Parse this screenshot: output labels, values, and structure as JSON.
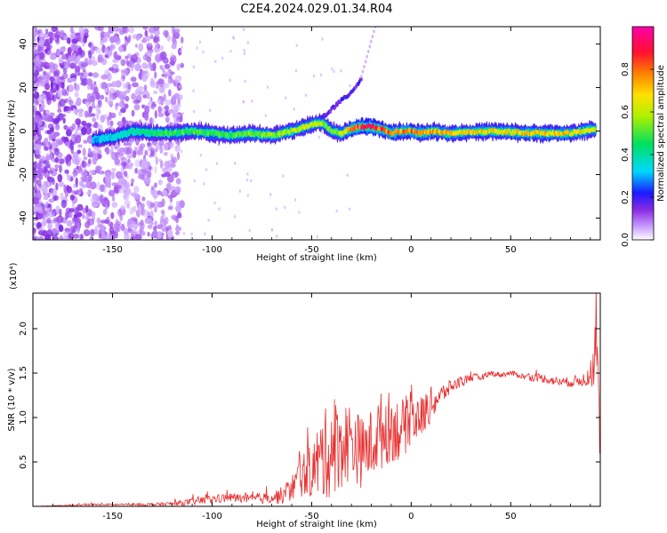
{
  "title": "C2E4.2024.029.01.34.R04",
  "chart_data": [
    {
      "type": "heatmap",
      "xlabel": "Height of straight line (km)",
      "ylabel": "Frequency (Hz)",
      "xlim": [
        -190,
        95
      ],
      "ylim": [
        -50,
        48
      ],
      "xticks": [
        -150,
        -100,
        -50,
        0,
        50
      ],
      "yticks": [
        -40,
        -20,
        0,
        20,
        40
      ],
      "colorbar": {
        "label": "Normalized spectral amplitude",
        "range": [
          0.0,
          1.0
        ],
        "ticks": [
          0.0,
          0.2,
          0.4,
          0.6,
          0.8
        ],
        "colors": [
          "#ffffff",
          "#c9a0ff",
          "#8a2be2",
          "#1a1aff",
          "#00d8ff",
          "#00e060",
          "#b0f000",
          "#ffe000",
          "#ff8000",
          "#ff1030",
          "#ff00aa"
        ]
      },
      "ridge": {
        "x": [
          -160,
          -150,
          -140,
          -130,
          -120,
          -110,
          -100,
          -90,
          -80,
          -70,
          -60,
          -50,
          -45,
          -40,
          -35,
          -30,
          -25,
          -20,
          -15,
          -10,
          -5,
          0,
          5,
          10,
          20,
          40,
          60,
          80,
          93
        ],
        "freq": [
          -4,
          -3,
          0,
          -1,
          -1,
          0,
          -1,
          -2,
          -1,
          -2,
          0,
          3,
          4,
          0,
          -1,
          1,
          2,
          2,
          1,
          -1,
          0,
          0,
          -1,
          0,
          -1,
          0,
          -1,
          -1,
          1
        ],
        "level": [
          0.3,
          0.35,
          0.4,
          0.45,
          0.5,
          0.5,
          0.5,
          0.5,
          0.55,
          0.55,
          0.6,
          0.65,
          0.6,
          0.5,
          0.6,
          0.8,
          0.9,
          0.9,
          0.85,
          0.8,
          0.75,
          0.8,
          0.8,
          0.75,
          0.7,
          0.7,
          0.7,
          0.7,
          0.6
        ]
      },
      "upper_branch": {
        "x": [
          -45,
          -40,
          -35,
          -30,
          -25
        ],
        "freq": [
          6,
          10,
          14,
          18,
          24
        ]
      }
    },
    {
      "type": "line",
      "xlabel": "Height of straight line (km)",
      "ylabel": "SNR (10 * v/v)",
      "y_multiplier": "(x10⁴)",
      "xlim": [
        -190,
        95
      ],
      "ylim": [
        0.0,
        2.4
      ],
      "xticks": [
        -150,
        -100,
        -50,
        0,
        50
      ],
      "yticks": [
        0.5,
        1.0,
        1.5,
        2.0
      ],
      "series": [
        {
          "color": "#e83030",
          "x": [
            -190,
            -170,
            -160,
            -150,
            -140,
            -130,
            -120,
            -110,
            -100,
            -90,
            -80,
            -70,
            -65,
            -60,
            -55,
            -50,
            -45,
            -40,
            -35,
            -30,
            -25,
            -20,
            -15,
            -10,
            -5,
            0,
            5,
            10,
            15,
            20,
            25,
            30,
            35,
            40,
            45,
            50,
            55,
            60,
            65,
            70,
            75,
            80,
            85,
            90,
            93,
            95
          ],
          "y": [
            0.0,
            0.01,
            0.02,
            0.02,
            0.02,
            0.02,
            0.03,
            0.05,
            0.08,
            0.1,
            0.08,
            0.1,
            0.12,
            0.2,
            0.35,
            0.4,
            0.55,
            0.65,
            0.7,
            0.75,
            0.6,
            0.7,
            0.85,
            0.9,
            0.85,
            1.0,
            1.0,
            1.15,
            1.25,
            1.35,
            1.4,
            1.45,
            1.45,
            1.5,
            1.48,
            1.5,
            1.47,
            1.45,
            1.45,
            1.42,
            1.4,
            1.4,
            1.42,
            1.45,
            1.8,
            0.6
          ],
          "noise_amp": [
            0.0,
            0.01,
            0.01,
            0.01,
            0.01,
            0.02,
            0.02,
            0.04,
            0.05,
            0.05,
            0.05,
            0.07,
            0.1,
            0.15,
            0.25,
            0.3,
            0.5,
            0.55,
            0.5,
            0.45,
            0.4,
            0.4,
            0.45,
            0.4,
            0.35,
            0.3,
            0.25,
            0.2,
            0.12,
            0.08,
            0.06,
            0.05,
            0.04,
            0.03,
            0.03,
            0.03,
            0.03,
            0.04,
            0.05,
            0.05,
            0.05,
            0.06,
            0.07,
            0.1,
            0.5,
            0.2
          ]
        }
      ]
    }
  ]
}
